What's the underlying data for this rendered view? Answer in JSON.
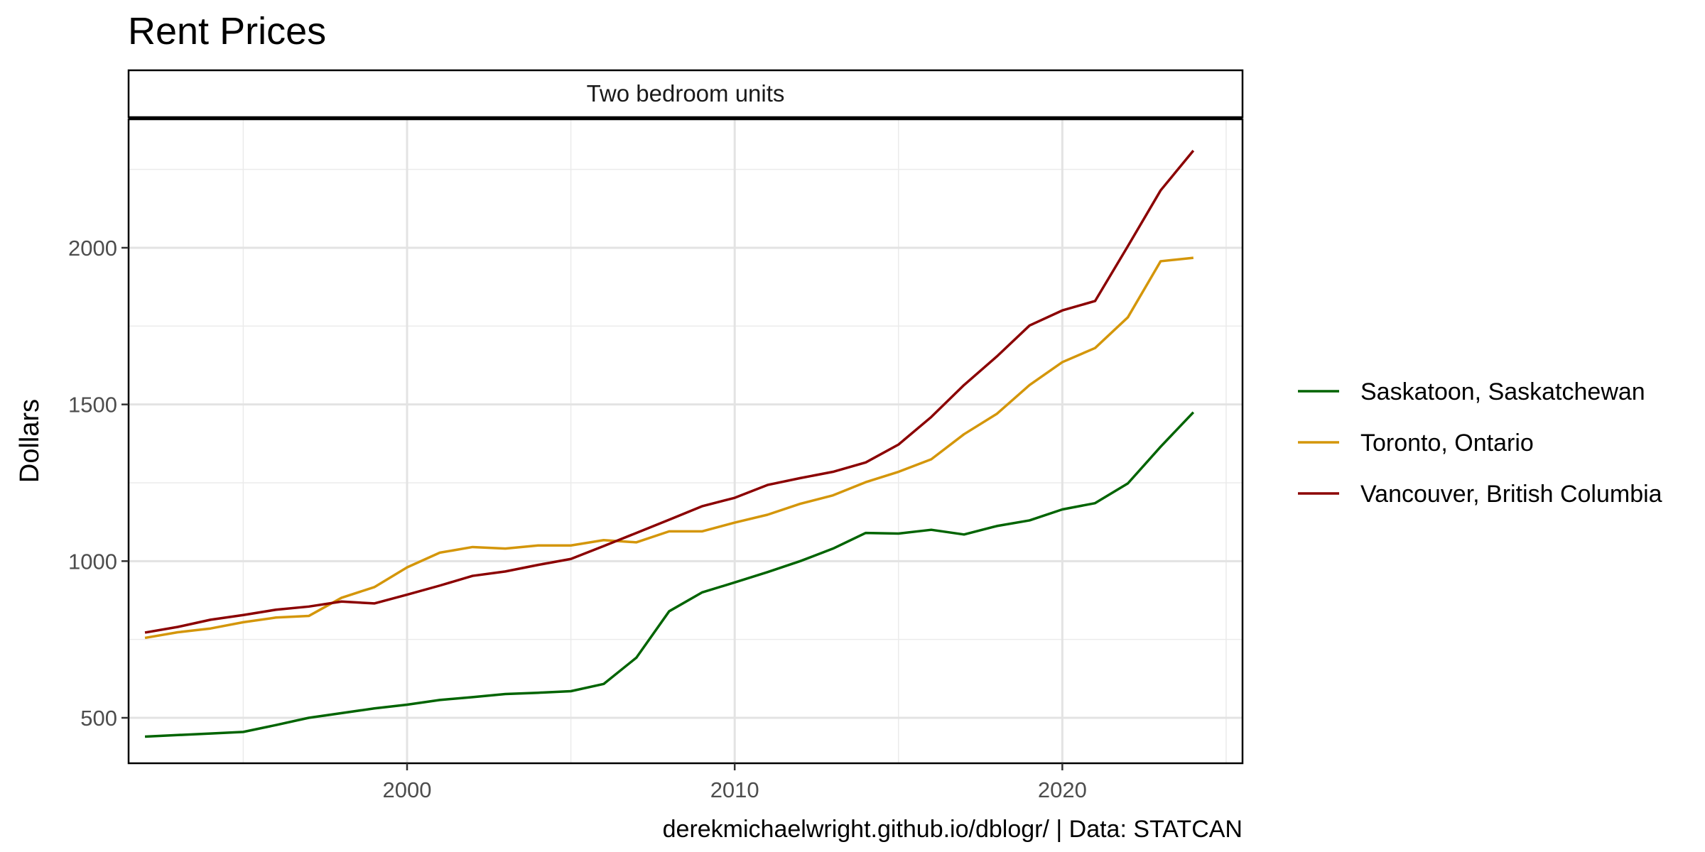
{
  "chart_data": {
    "type": "line",
    "title": "Rent Prices",
    "facet_label": "Two bedroom units",
    "xlabel": "",
    "ylabel": "Dollars",
    "caption": "derekmichaelwright.github.io/dblogr/ | Data: STATCAN",
    "xlim": [
      1991.5,
      2025.5
    ],
    "ylim": [
      355,
      2410
    ],
    "x_ticks": [
      2000,
      2010,
      2020
    ],
    "y_ticks": [
      500,
      1000,
      1500,
      2000
    ],
    "grid": true,
    "legend_position": "right",
    "x": [
      1992,
      1993,
      1994,
      1995,
      1996,
      1997,
      1998,
      1999,
      2000,
      2001,
      2002,
      2003,
      2004,
      2005,
      2006,
      2007,
      2008,
      2009,
      2010,
      2011,
      2012,
      2013,
      2014,
      2015,
      2016,
      2017,
      2018,
      2019,
      2020,
      2021,
      2022,
      2023,
      2024
    ],
    "series": [
      {
        "name": "Saskatoon, Saskatchewan",
        "color": "#006400",
        "values": [
          440,
          445,
          450,
          455,
          477,
          500,
          515,
          530,
          542,
          557,
          566,
          576,
          580,
          585,
          608,
          692,
          840,
          900,
          932,
          965,
          1000,
          1040,
          1090,
          1088,
          1100,
          1085,
          1112,
          1130,
          1165,
          1185,
          1248,
          1365,
          1475
        ]
      },
      {
        "name": "Toronto, Ontario",
        "color": "#D4960A",
        "values": [
          755,
          773,
          785,
          805,
          820,
          825,
          883,
          917,
          980,
          1027,
          1045,
          1040,
          1050,
          1050,
          1067,
          1060,
          1095,
          1095,
          1123,
          1148,
          1183,
          1210,
          1252,
          1285,
          1325,
          1405,
          1470,
          1562,
          1635,
          1680,
          1778,
          1957,
          1968
        ]
      },
      {
        "name": "Vancouver, British Columbia",
        "color": "#8B0000",
        "values": [
          772,
          790,
          813,
          828,
          845,
          855,
          871,
          865,
          893,
          922,
          953,
          967,
          988,
          1007,
          1048,
          1090,
          1132,
          1175,
          1202,
          1243,
          1265,
          1285,
          1315,
          1372,
          1460,
          1562,
          1653,
          1752,
          1800,
          1830,
          2005,
          2183,
          2310
        ]
      }
    ]
  }
}
